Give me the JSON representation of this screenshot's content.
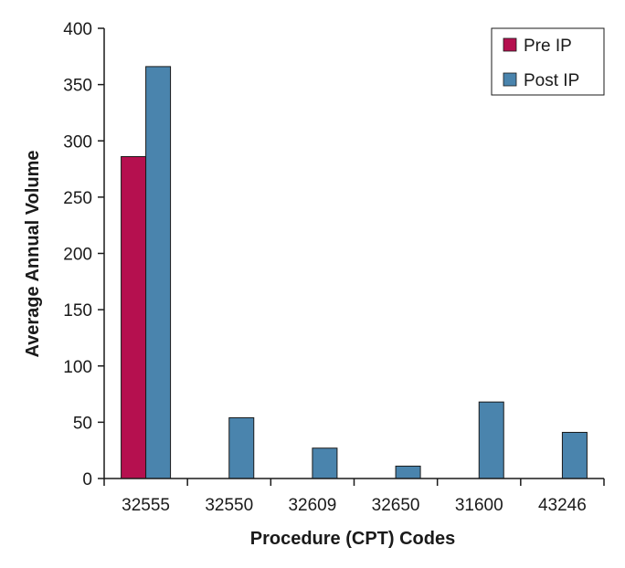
{
  "chart_data": {
    "type": "bar",
    "title": "",
    "xlabel": "Procedure (CPT) Codes",
    "ylabel": "Average Annual Volume",
    "categories": [
      "32555",
      "32550",
      "32609",
      "32650",
      "31600",
      "43246"
    ],
    "series": [
      {
        "name": "Pre IP",
        "values": [
          286,
          0,
          0,
          0,
          0,
          0
        ],
        "color": "#b5104f"
      },
      {
        "name": "Post IP",
        "values": [
          366,
          54,
          27,
          11,
          68,
          41
        ],
        "color": "#4a84ad"
      }
    ],
    "ylim": [
      0,
      400
    ],
    "yticks": [
      0,
      50,
      100,
      150,
      200,
      250,
      300,
      350,
      400
    ],
    "grid": false,
    "legend_position": "top-right"
  }
}
